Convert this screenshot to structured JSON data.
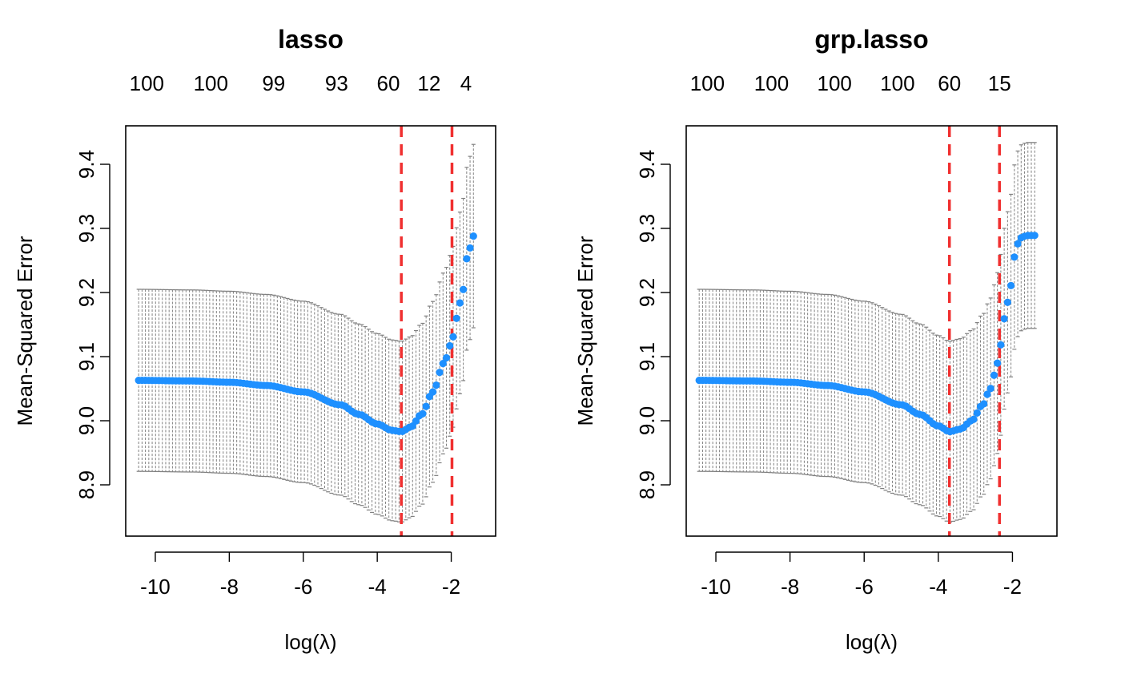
{
  "chart_data": [
    {
      "type": "scatter",
      "title": "lasso",
      "xlabel": "log(λ)",
      "ylabel": "Mean-Squared Error",
      "xlim": [
        -10.8,
        -0.8
      ],
      "ylim": [
        8.82,
        9.46
      ],
      "x_ticks": [
        -10,
        -8,
        -6,
        -4,
        -2
      ],
      "x_tick_labels": [
        "-10",
        "-8",
        "-6",
        "-4",
        "-2"
      ],
      "y_ticks": [
        8.9,
        9.0,
        9.1,
        9.2,
        9.3,
        9.4
      ],
      "y_tick_labels": [
        "8.9",
        "9.0",
        "9.1",
        "9.2",
        "9.3",
        "9.4"
      ],
      "top_ticks": [
        -10.23,
        -8.5,
        -6.8,
        -5.1,
        -3.7,
        -2.6,
        -1.6
      ],
      "top_tick_labels": [
        "100",
        "100",
        "99",
        "93",
        "60",
        "12",
        "4"
      ],
      "vlines": [
        -3.35,
        -1.98
      ],
      "grid": false,
      "point_color": "#1E90FF",
      "line_color": "#F03030",
      "errorbar_color": "#808080",
      "x_range": [
        -10.45,
        -1.4
      ],
      "n_points": 100,
      "curve": [
        [
          -10.45,
          9.063
        ],
        [
          -9.0,
          9.062
        ],
        [
          -8.0,
          9.06
        ],
        [
          -7.0,
          9.055
        ],
        [
          -6.0,
          9.045
        ],
        [
          -5.0,
          9.025
        ],
        [
          -4.5,
          9.01
        ],
        [
          -4.0,
          8.995
        ],
        [
          -3.6,
          8.985
        ],
        [
          -3.35,
          8.983
        ],
        [
          -3.1,
          8.99
        ],
        [
          -2.8,
          9.01
        ],
        [
          -2.5,
          9.045
        ],
        [
          -2.2,
          9.09
        ],
        [
          -2.0,
          9.12
        ],
        [
          -1.85,
          9.16
        ],
        [
          -1.7,
          9.2
        ],
        [
          -1.55,
          9.26
        ],
        [
          -1.4,
          9.288
        ]
      ],
      "ci_halfwidth": [
        [
          -10.45,
          0.142
        ],
        [
          -7.0,
          0.142
        ],
        [
          -5.0,
          0.141
        ],
        [
          -3.35,
          0.141
        ],
        [
          -2.0,
          0.141
        ],
        [
          -1.4,
          0.143
        ]
      ]
    },
    {
      "type": "scatter",
      "title": "grp.lasso",
      "xlabel": "log(λ)",
      "ylabel": "Mean-Squared Error",
      "xlim": [
        -10.8,
        -0.8
      ],
      "ylim": [
        8.82,
        9.46
      ],
      "x_ticks": [
        -10,
        -8,
        -6,
        -4,
        -2
      ],
      "x_tick_labels": [
        "-10",
        "-8",
        "-6",
        "-4",
        "-2"
      ],
      "y_ticks": [
        8.9,
        9.0,
        9.1,
        9.2,
        9.3,
        9.4
      ],
      "y_tick_labels": [
        "8.9",
        "9.0",
        "9.1",
        "9.2",
        "9.3",
        "9.4"
      ],
      "top_ticks": [
        -10.23,
        -8.5,
        -6.8,
        -5.1,
        -3.7,
        -2.35
      ],
      "top_tick_labels": [
        "100",
        "100",
        "100",
        "100",
        "60",
        "15"
      ],
      "vlines": [
        -3.7,
        -2.35
      ],
      "grid": false,
      "point_color": "#1E90FF",
      "line_color": "#F03030",
      "errorbar_color": "#808080",
      "x_range": [
        -10.45,
        -1.4
      ],
      "n_points": 100,
      "curve": [
        [
          -10.45,
          9.063
        ],
        [
          -9.0,
          9.062
        ],
        [
          -8.0,
          9.06
        ],
        [
          -7.0,
          9.055
        ],
        [
          -6.0,
          9.045
        ],
        [
          -5.0,
          9.025
        ],
        [
          -4.5,
          9.01
        ],
        [
          -4.0,
          8.992
        ],
        [
          -3.7,
          8.983
        ],
        [
          -3.4,
          8.987
        ],
        [
          -3.1,
          9.0
        ],
        [
          -2.8,
          9.025
        ],
        [
          -2.6,
          9.05
        ],
        [
          -2.4,
          9.09
        ],
        [
          -2.3,
          9.12
        ],
        [
          -2.2,
          9.165
        ],
        [
          -2.05,
          9.21
        ],
        [
          -1.9,
          9.27
        ],
        [
          -1.8,
          9.285
        ],
        [
          -1.6,
          9.289
        ],
        [
          -1.4,
          9.289
        ]
      ],
      "ci_halfwidth": [
        [
          -10.45,
          0.142
        ],
        [
          -7.0,
          0.142
        ],
        [
          -5.0,
          0.141
        ],
        [
          -3.7,
          0.141
        ],
        [
          -2.2,
          0.141
        ],
        [
          -1.8,
          0.145
        ],
        [
          -1.4,
          0.145
        ]
      ]
    }
  ]
}
